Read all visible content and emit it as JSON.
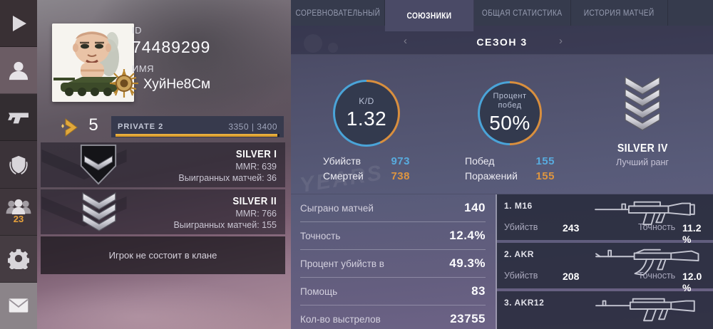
{
  "colors": {
    "blue": "#4aa4d8",
    "orange": "#d98f3e",
    "gold": "#dda437"
  },
  "sidebar": {
    "friends_badge": "23",
    "items": [
      {
        "id": "play"
      },
      {
        "id": "profile"
      },
      {
        "id": "armory"
      },
      {
        "id": "clan"
      },
      {
        "id": "friends"
      },
      {
        "id": "settings"
      },
      {
        "id": "mail"
      }
    ]
  },
  "player": {
    "id_label": "ID",
    "id_value": "74489299",
    "name_label": "ИМЯ",
    "name_value": "ХуйНе8См",
    "level": "5",
    "level_rank": "PRIVATE 2",
    "xp": "3350 | 3400",
    "xp_percent": 98.5
  },
  "ranks": [
    {
      "title": "SILVER I",
      "mmr": "MMR: 639",
      "wins": "Выигранных матчей: 36"
    },
    {
      "title": "SILVER II",
      "mmr": "MMR: 766",
      "wins": "Выигранных матчей: 155"
    }
  ],
  "clan_status": "Игрок не состоит в клане",
  "tabs": [
    {
      "label": "СОРЕВНОВАТЕЛЬНЫЙ"
    },
    {
      "label": "СОЮЗНИКИ"
    },
    {
      "label": "ОБЩАЯ СТАТИСТИКА"
    },
    {
      "label": "ИСТОРИЯ МАТЧЕЙ"
    }
  ],
  "season": {
    "title": "СЕЗОН 3",
    "kd": {
      "label": "K/D",
      "value": "1.32",
      "orange_fraction": 0.431,
      "rows": [
        {
          "label": "Убийств",
          "value": "973"
        },
        {
          "label": "Смертей",
          "value": "738"
        }
      ]
    },
    "winrate": {
      "label_line1": "Процент",
      "label_line2": "побед",
      "value": "50%",
      "orange_fraction": 0.5,
      "rows": [
        {
          "label": "Побед",
          "value": "155"
        },
        {
          "label": "Поражений",
          "value": "155"
        }
      ]
    },
    "best_rank": {
      "title": "SILVER IV",
      "caption": "Лучший ранг"
    }
  },
  "stats": [
    {
      "label": "Сыграно матчей",
      "value": "140"
    },
    {
      "label": "Точность",
      "value": "12.4%"
    },
    {
      "label": "Процент убийств в",
      "value": "49.3%"
    },
    {
      "label": "Помощь",
      "value": "83"
    },
    {
      "label": "Кол-во выстрелов",
      "value": "23755"
    }
  ],
  "weapons": [
    {
      "title": "1. M16",
      "kills_label": "Убийств",
      "kills": "243",
      "acc_label": "Точность",
      "acc": "11.2 %"
    },
    {
      "title": "2. AKR",
      "kills_label": "Убийств",
      "kills": "208",
      "acc_label": "Точность",
      "acc": "12.0 %"
    },
    {
      "title": "3. AKR12"
    }
  ],
  "decor": {
    "graffiti": "YEARS"
  }
}
